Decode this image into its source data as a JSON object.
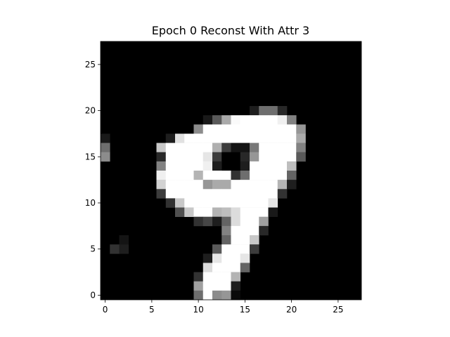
{
  "chart_data": {
    "type": "heatmap",
    "title": "Epoch 0 Reconst With Attr 3",
    "xlabel": "",
    "ylabel": "",
    "colormap": "gray",
    "value_range": [
      0,
      255
    ],
    "grid": false,
    "xlim": [
      -0.5,
      27.5
    ],
    "ylim": [
      27.5,
      -0.5
    ],
    "x_ticks": [
      0,
      5,
      10,
      15,
      20,
      25
    ],
    "y_ticks": [
      0,
      5,
      10,
      15,
      20,
      25
    ],
    "rows": 28,
    "cols": 28,
    "cells": [
      [
        7,
        16,
        30
      ],
      [
        7,
        17,
        110
      ],
      [
        7,
        18,
        110
      ],
      [
        7,
        19,
        40
      ],
      [
        8,
        11,
        25
      ],
      [
        8,
        12,
        90
      ],
      [
        8,
        13,
        170
      ],
      [
        8,
        14,
        250
      ],
      [
        8,
        15,
        255
      ],
      [
        8,
        16,
        255
      ],
      [
        8,
        17,
        255
      ],
      [
        8,
        18,
        255
      ],
      [
        8,
        19,
        240
      ],
      [
        8,
        20,
        130
      ],
      [
        9,
        10,
        140
      ],
      [
        9,
        11,
        255
      ],
      [
        9,
        12,
        255
      ],
      [
        9,
        13,
        255
      ],
      [
        9,
        14,
        255
      ],
      [
        9,
        15,
        255
      ],
      [
        9,
        16,
        255
      ],
      [
        9,
        17,
        255
      ],
      [
        9,
        18,
        255
      ],
      [
        9,
        19,
        255
      ],
      [
        9,
        20,
        255
      ],
      [
        9,
        21,
        150
      ],
      [
        10,
        0,
        25
      ],
      [
        10,
        7,
        30
      ],
      [
        10,
        8,
        225
      ],
      [
        10,
        9,
        255
      ],
      [
        10,
        10,
        255
      ],
      [
        10,
        11,
        255
      ],
      [
        10,
        12,
        255
      ],
      [
        10,
        13,
        255
      ],
      [
        10,
        14,
        255
      ],
      [
        10,
        15,
        255
      ],
      [
        10,
        16,
        255
      ],
      [
        10,
        17,
        255
      ],
      [
        10,
        18,
        255
      ],
      [
        10,
        19,
        255
      ],
      [
        10,
        20,
        255
      ],
      [
        10,
        21,
        170
      ],
      [
        11,
        0,
        110
      ],
      [
        11,
        6,
        200
      ],
      [
        11,
        7,
        255
      ],
      [
        11,
        8,
        255
      ],
      [
        11,
        9,
        255
      ],
      [
        11,
        10,
        255
      ],
      [
        11,
        11,
        255
      ],
      [
        11,
        12,
        175
      ],
      [
        11,
        13,
        60
      ],
      [
        11,
        14,
        20
      ],
      [
        11,
        15,
        20
      ],
      [
        11,
        16,
        120
      ],
      [
        11,
        17,
        255
      ],
      [
        11,
        18,
        255
      ],
      [
        11,
        19,
        255
      ],
      [
        11,
        20,
        255
      ],
      [
        11,
        21,
        130
      ],
      [
        12,
        0,
        140
      ],
      [
        12,
        6,
        40
      ],
      [
        12,
        7,
        255
      ],
      [
        12,
        8,
        255
      ],
      [
        12,
        9,
        255
      ],
      [
        12,
        10,
        255
      ],
      [
        12,
        11,
        230
      ],
      [
        12,
        12,
        60
      ],
      [
        12,
        13,
        0
      ],
      [
        12,
        14,
        0
      ],
      [
        12,
        15,
        40
      ],
      [
        12,
        16,
        150
      ],
      [
        12,
        17,
        255
      ],
      [
        12,
        18,
        255
      ],
      [
        12,
        19,
        255
      ],
      [
        12,
        20,
        255
      ],
      [
        12,
        21,
        90
      ],
      [
        13,
        6,
        130
      ],
      [
        13,
        7,
        255
      ],
      [
        13,
        8,
        255
      ],
      [
        13,
        9,
        255
      ],
      [
        13,
        10,
        255
      ],
      [
        13,
        11,
        240
      ],
      [
        13,
        12,
        30
      ],
      [
        13,
        15,
        30
      ],
      [
        13,
        16,
        255
      ],
      [
        13,
        17,
        255
      ],
      [
        13,
        18,
        255
      ],
      [
        13,
        19,
        255
      ],
      [
        13,
        20,
        190
      ],
      [
        14,
        6,
        240
      ],
      [
        14,
        7,
        255
      ],
      [
        14,
        8,
        255
      ],
      [
        14,
        9,
        255
      ],
      [
        14,
        10,
        180
      ],
      [
        14,
        11,
        255
      ],
      [
        14,
        12,
        255
      ],
      [
        14,
        13,
        255
      ],
      [
        14,
        14,
        50
      ],
      [
        14,
        15,
        110
      ],
      [
        14,
        16,
        255
      ],
      [
        14,
        17,
        255
      ],
      [
        14,
        18,
        255
      ],
      [
        14,
        19,
        255
      ],
      [
        14,
        20,
        100
      ],
      [
        15,
        6,
        210
      ],
      [
        15,
        7,
        255
      ],
      [
        15,
        8,
        255
      ],
      [
        15,
        9,
        255
      ],
      [
        15,
        10,
        255
      ],
      [
        15,
        11,
        150
      ],
      [
        15,
        12,
        170
      ],
      [
        15,
        13,
        170
      ],
      [
        15,
        14,
        255
      ],
      [
        15,
        15,
        255
      ],
      [
        15,
        16,
        255
      ],
      [
        15,
        17,
        255
      ],
      [
        15,
        18,
        255
      ],
      [
        15,
        19,
        180
      ],
      [
        15,
        20,
        30
      ],
      [
        16,
        6,
        60
      ],
      [
        16,
        7,
        255
      ],
      [
        16,
        8,
        255
      ],
      [
        16,
        9,
        255
      ],
      [
        16,
        10,
        255
      ],
      [
        16,
        11,
        255
      ],
      [
        16,
        12,
        255
      ],
      [
        16,
        13,
        255
      ],
      [
        16,
        14,
        255
      ],
      [
        16,
        15,
        255
      ],
      [
        16,
        16,
        255
      ],
      [
        16,
        17,
        255
      ],
      [
        16,
        18,
        255
      ],
      [
        16,
        19,
        50
      ],
      [
        17,
        7,
        50
      ],
      [
        17,
        8,
        200
      ],
      [
        17,
        9,
        255
      ],
      [
        17,
        10,
        255
      ],
      [
        17,
        11,
        255
      ],
      [
        17,
        12,
        255
      ],
      [
        17,
        13,
        255
      ],
      [
        17,
        14,
        255
      ],
      [
        17,
        15,
        255
      ],
      [
        17,
        16,
        255
      ],
      [
        17,
        17,
        255
      ],
      [
        17,
        18,
        230
      ],
      [
        18,
        8,
        80
      ],
      [
        18,
        9,
        200
      ],
      [
        18,
        10,
        255
      ],
      [
        18,
        11,
        255
      ],
      [
        18,
        12,
        180
      ],
      [
        18,
        13,
        190
      ],
      [
        18,
        14,
        220
      ],
      [
        18,
        15,
        255
      ],
      [
        18,
        16,
        255
      ],
      [
        18,
        17,
        255
      ],
      [
        18,
        18,
        25
      ],
      [
        19,
        10,
        50
      ],
      [
        19,
        11,
        70
      ],
      [
        19,
        12,
        30
      ],
      [
        19,
        13,
        100
      ],
      [
        19,
        14,
        220
      ],
      [
        19,
        15,
        255
      ],
      [
        19,
        16,
        255
      ],
      [
        19,
        17,
        160
      ],
      [
        20,
        13,
        130
      ],
      [
        20,
        14,
        255
      ],
      [
        20,
        15,
        255
      ],
      [
        20,
        16,
        255
      ],
      [
        20,
        17,
        40
      ],
      [
        21,
        2,
        20
      ],
      [
        21,
        13,
        100
      ],
      [
        21,
        14,
        255
      ],
      [
        21,
        15,
        255
      ],
      [
        21,
        16,
        200
      ],
      [
        22,
        1,
        50
      ],
      [
        22,
        2,
        30
      ],
      [
        22,
        12,
        90
      ],
      [
        22,
        13,
        255
      ],
      [
        22,
        14,
        255
      ],
      [
        22,
        15,
        255
      ],
      [
        22,
        16,
        60
      ],
      [
        23,
        11,
        30
      ],
      [
        23,
        12,
        230
      ],
      [
        23,
        13,
        255
      ],
      [
        23,
        14,
        255
      ],
      [
        23,
        15,
        230
      ],
      [
        24,
        11,
        220
      ],
      [
        24,
        12,
        255
      ],
      [
        24,
        13,
        255
      ],
      [
        24,
        14,
        255
      ],
      [
        24,
        15,
        100
      ],
      [
        25,
        10,
        50
      ],
      [
        25,
        11,
        255
      ],
      [
        25,
        12,
        255
      ],
      [
        25,
        13,
        255
      ],
      [
        25,
        14,
        180
      ],
      [
        26,
        10,
        160
      ],
      [
        26,
        11,
        255
      ],
      [
        26,
        12,
        255
      ],
      [
        26,
        13,
        255
      ],
      [
        26,
        14,
        30
      ],
      [
        27,
        10,
        110
      ],
      [
        27,
        11,
        255
      ],
      [
        27,
        12,
        140
      ],
      [
        27,
        13,
        150
      ],
      [
        27,
        14,
        10
      ]
    ]
  }
}
